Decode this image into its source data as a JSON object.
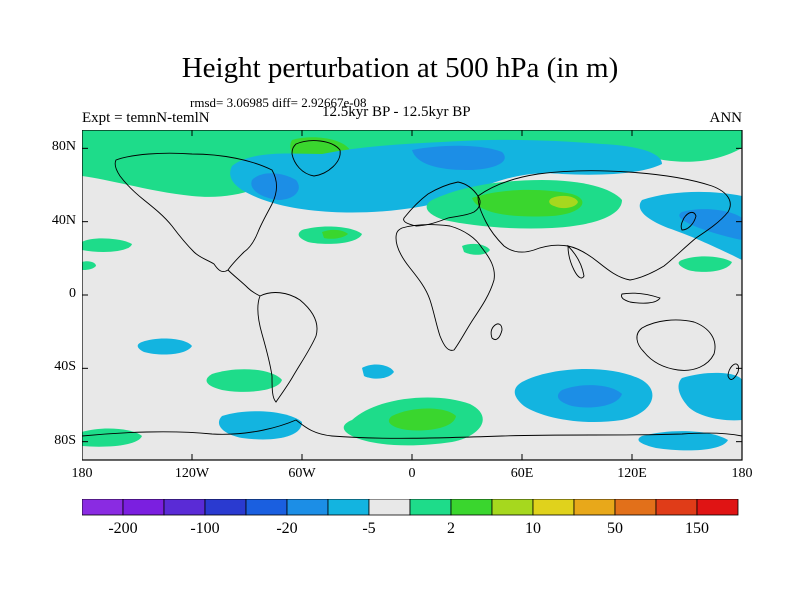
{
  "title": "Height perturbation at 500 hPa (in m)",
  "stats": "rmsd= 3.06985 diff= 2.92667e-08",
  "left_label": "Expt = temnN-temlN",
  "center_label": "12.5kyr BP - 12.5kyr BP",
  "right_label": "ANN",
  "map": {
    "lon_range": [
      -180,
      180
    ],
    "lat_range": [
      -90,
      90
    ],
    "lat_ticks": [
      {
        "value": 80,
        "label": "80N"
      },
      {
        "value": 40,
        "label": "40N"
      },
      {
        "value": 0,
        "label": "0"
      },
      {
        "value": -40,
        "label": "40S"
      },
      {
        "value": -80,
        "label": "80S"
      }
    ],
    "lon_ticks": [
      {
        "value": -180,
        "label": "180"
      },
      {
        "value": -120,
        "label": "120W"
      },
      {
        "value": -60,
        "label": "60W"
      },
      {
        "value": 0,
        "label": "0"
      },
      {
        "value": 60,
        "label": "60E"
      },
      {
        "value": 120,
        "label": "120E"
      },
      {
        "value": 180,
        "label": "180"
      }
    ],
    "background_color": "#e8e8e8"
  },
  "colorbar": {
    "colors": [
      "#8a2be2",
      "#7b1fe0",
      "#5a2bd6",
      "#2a3ad0",
      "#1a5fe0",
      "#1c8ee6",
      "#13b4e0",
      "#e8e8e8",
      "#1edc8a",
      "#3ad62e",
      "#a6d81e",
      "#e0d21c",
      "#e8a81a",
      "#e2701a",
      "#e03c18",
      "#e01414"
    ],
    "labels": [
      {
        "after_box": 1,
        "text": "-200"
      },
      {
        "after_box": 3,
        "text": "-100"
      },
      {
        "after_box": 5,
        "text": "-20"
      },
      {
        "after_box": 7,
        "text": "-5"
      },
      {
        "after_box": 9,
        "text": "2"
      },
      {
        "after_box": 11,
        "text": "10"
      },
      {
        "after_box": 13,
        "text": "50"
      },
      {
        "after_box": 15,
        "text": "150"
      }
    ]
  }
}
